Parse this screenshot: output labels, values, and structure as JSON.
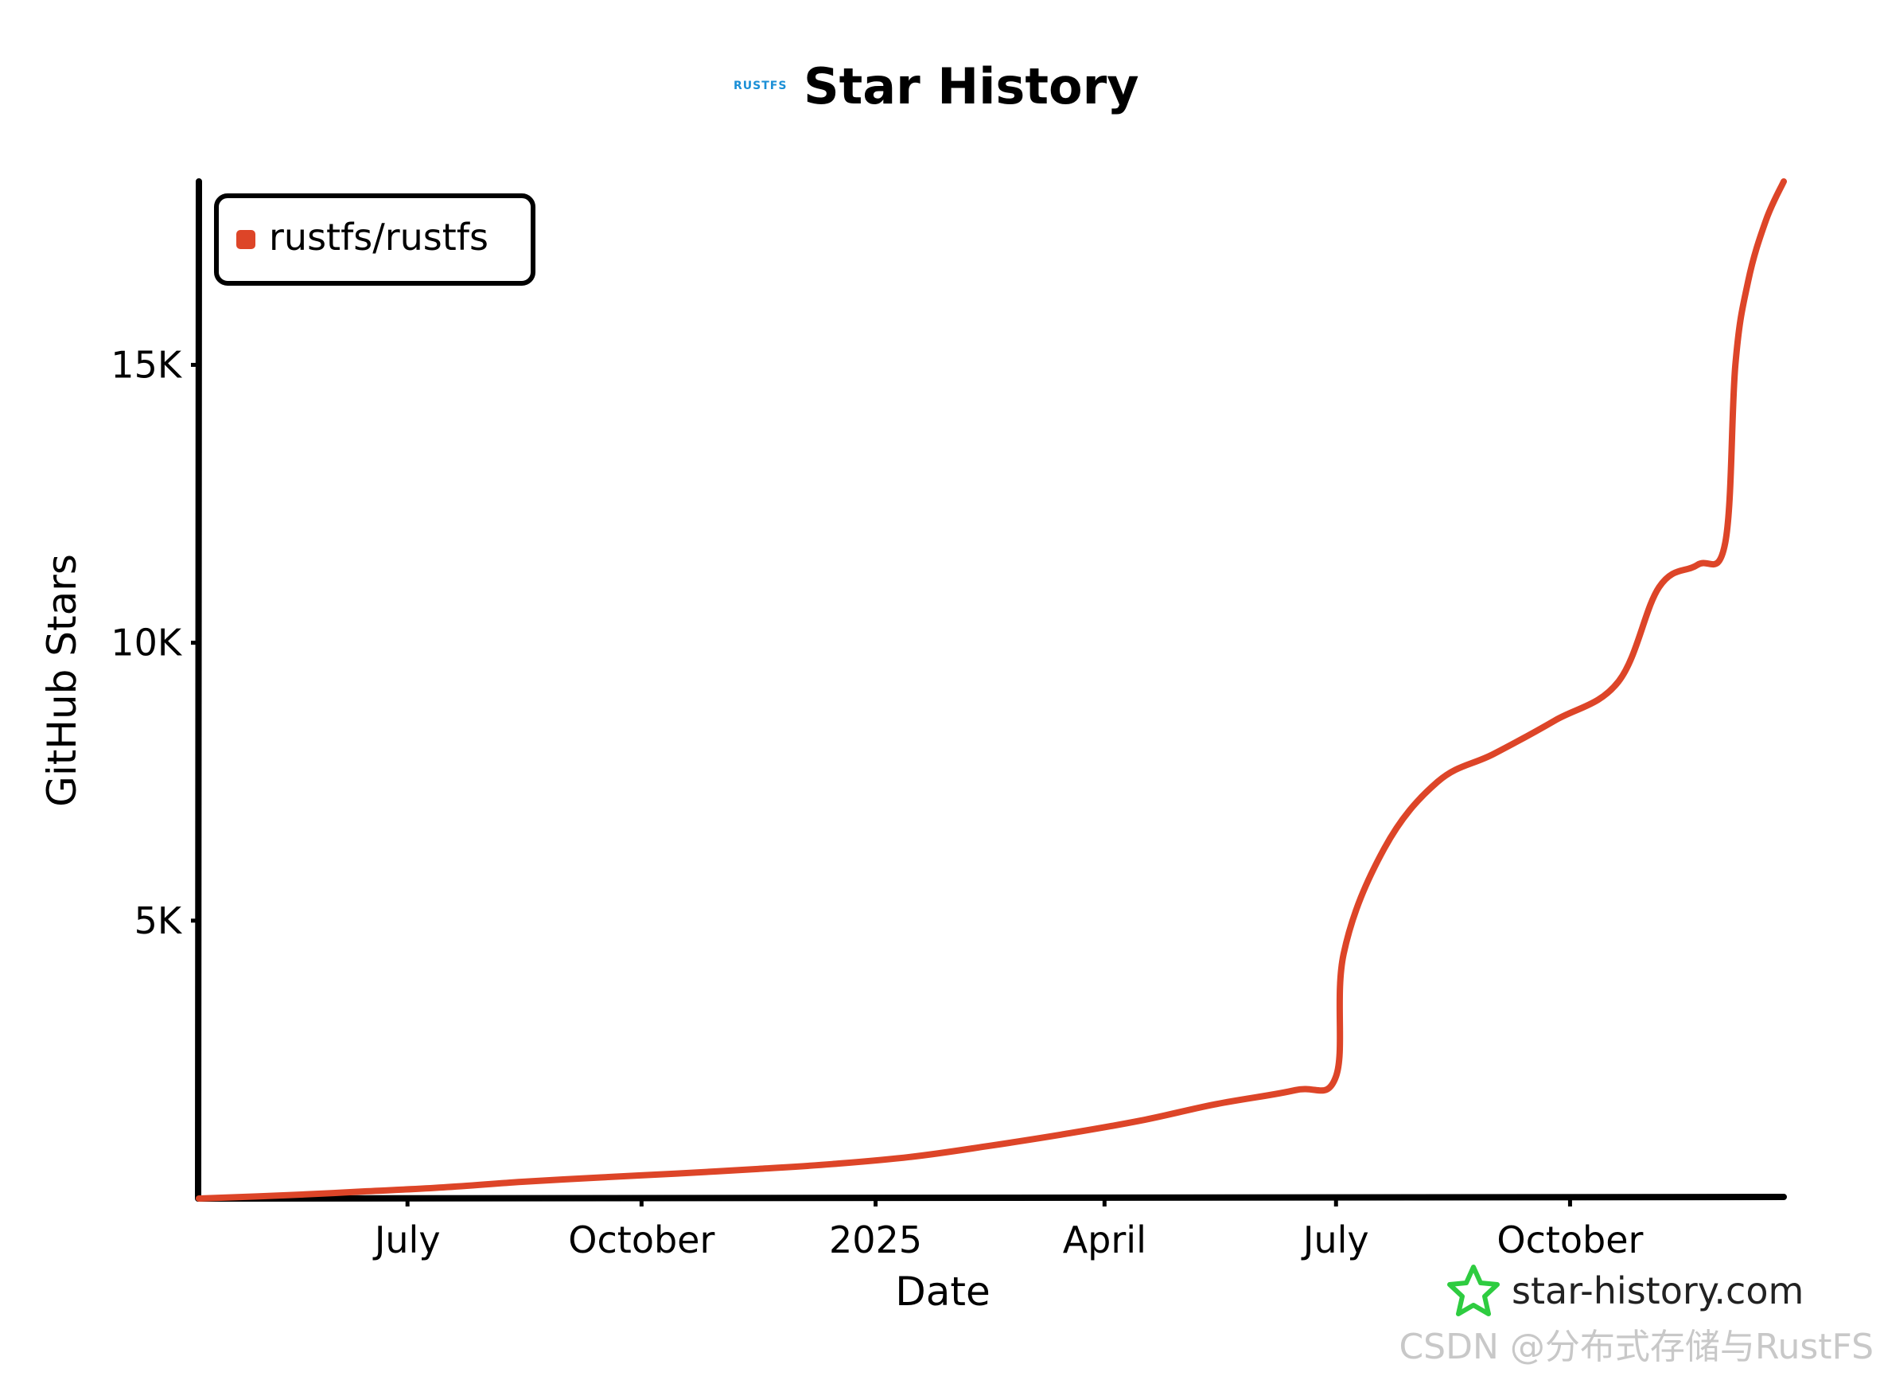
{
  "header": {
    "logo_text": "RUSTFS",
    "title": "Star History"
  },
  "brand": {
    "site": "star-history.com",
    "icon": "star-outline-icon",
    "icon_color": "#2ecc40"
  },
  "watermark": "CSDN @分布式存储与RustFS",
  "colors": {
    "series": "#dd4528",
    "axis": "#000000",
    "logo": "#1a8fd6"
  },
  "chart_data": {
    "type": "line",
    "title": "Star History",
    "xlabel": "Date",
    "ylabel": "GitHub Stars",
    "x_range": [
      "2024-04-10",
      "2025-12-24"
    ],
    "ylim": [
      0,
      18300
    ],
    "grid": false,
    "legend_position": "top-left",
    "x_ticks": [
      {
        "date": "2024-07-01",
        "label": "July"
      },
      {
        "date": "2024-10-01",
        "label": "October"
      },
      {
        "date": "2025-01-01",
        "label": "2025"
      },
      {
        "date": "2025-04-01",
        "label": "April"
      },
      {
        "date": "2025-07-01",
        "label": "July"
      },
      {
        "date": "2025-10-01",
        "label": "October"
      }
    ],
    "y_ticks": [
      {
        "value": 5000,
        "label": "5K"
      },
      {
        "value": 10000,
        "label": "10K"
      },
      {
        "value": 15000,
        "label": "15K"
      }
    ],
    "series": [
      {
        "name": "rustfs/rustfs",
        "color": "#dd4528",
        "points": [
          {
            "x": "2024-04-10",
            "y": 0
          },
          {
            "x": "2024-05-15",
            "y": 60
          },
          {
            "x": "2024-06-15",
            "y": 130
          },
          {
            "x": "2024-07-15",
            "y": 200
          },
          {
            "x": "2024-08-15",
            "y": 300
          },
          {
            "x": "2024-09-15",
            "y": 380
          },
          {
            "x": "2024-10-15",
            "y": 450
          },
          {
            "x": "2024-11-15",
            "y": 530
          },
          {
            "x": "2024-12-15",
            "y": 620
          },
          {
            "x": "2025-01-15",
            "y": 750
          },
          {
            "x": "2025-02-15",
            "y": 950
          },
          {
            "x": "2025-03-15",
            "y": 1150
          },
          {
            "x": "2025-04-15",
            "y": 1400
          },
          {
            "x": "2025-05-15",
            "y": 1700
          },
          {
            "x": "2025-06-15",
            "y": 1950
          },
          {
            "x": "2025-07-01",
            "y": 2200
          },
          {
            "x": "2025-07-04",
            "y": 4400
          },
          {
            "x": "2025-07-20",
            "y": 6300
          },
          {
            "x": "2025-08-10",
            "y": 7500
          },
          {
            "x": "2025-09-01",
            "y": 8000
          },
          {
            "x": "2025-09-25",
            "y": 8600
          },
          {
            "x": "2025-10-20",
            "y": 9300
          },
          {
            "x": "2025-11-05",
            "y": 11000
          },
          {
            "x": "2025-11-20",
            "y": 11400
          },
          {
            "x": "2025-12-01",
            "y": 11800
          },
          {
            "x": "2025-12-05",
            "y": 15000
          },
          {
            "x": "2025-12-10",
            "y": 16500
          },
          {
            "x": "2025-12-17",
            "y": 17600
          },
          {
            "x": "2025-12-24",
            "y": 18300
          }
        ]
      }
    ]
  }
}
